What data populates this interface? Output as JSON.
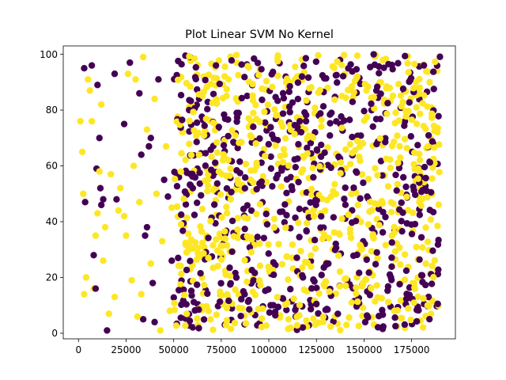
{
  "chart_data": {
    "type": "scatter",
    "title": "Plot Linear SVM No Kernel",
    "xlabel": "",
    "ylabel": "",
    "xlim": [
      -8000,
      198000
    ],
    "ylim": [
      -2,
      103
    ],
    "xticks": [
      0,
      25000,
      50000,
      75000,
      100000,
      125000,
      150000,
      175000
    ],
    "xtick_labels": [
      "0",
      "25000",
      "50000",
      "75000",
      "100000",
      "125000",
      "150000",
      "175000"
    ],
    "yticks": [
      0,
      20,
      40,
      60,
      80,
      100
    ],
    "ytick_labels": [
      "0",
      "20",
      "40",
      "60",
      "80",
      "100"
    ],
    "grid": false,
    "legend": "none",
    "point_count": 1400,
    "series": [
      {
        "class": 0,
        "color": "#440154",
        "points": [
          [
            3000,
            95
          ],
          [
            3500,
            47
          ],
          [
            7000,
            96
          ],
          [
            8000,
            28
          ],
          [
            9000,
            16
          ],
          [
            9500,
            59
          ],
          [
            10000,
            89
          ],
          [
            11000,
            70
          ],
          [
            11500,
            52
          ],
          [
            12000,
            46
          ],
          [
            13000,
            48
          ],
          [
            15000,
            1
          ],
          [
            19000,
            93
          ],
          [
            20000,
            48
          ],
          [
            24000,
            75
          ],
          [
            27000,
            97
          ],
          [
            32000,
            86
          ],
          [
            33000,
            64
          ],
          [
            34000,
            5
          ],
          [
            35000,
            35
          ],
          [
            36000,
            38
          ],
          [
            37000,
            67
          ],
          [
            38000,
            70
          ],
          [
            39000,
            18
          ],
          [
            40000,
            4
          ],
          [
            42000,
            91
          ],
          [
            45000,
            55
          ],
          [
            47000,
            49
          ],
          [
            49000,
            26
          ]
        ]
      },
      {
        "class": 1,
        "color": "#fde725",
        "points": [
          [
            1000,
            76
          ],
          [
            2000,
            65
          ],
          [
            2500,
            50
          ],
          [
            3000,
            14
          ],
          [
            4000,
            20
          ],
          [
            5000,
            91
          ],
          [
            6000,
            87
          ],
          [
            7000,
            76
          ],
          [
            8000,
            16
          ],
          [
            9000,
            35
          ],
          [
            10000,
            43
          ],
          [
            11000,
            58
          ],
          [
            12000,
            82
          ],
          [
            13000,
            26
          ],
          [
            14000,
            38
          ],
          [
            16000,
            7
          ],
          [
            17000,
            57
          ],
          [
            19000,
            13
          ],
          [
            21000,
            44
          ],
          [
            22000,
            52
          ],
          [
            24000,
            42
          ],
          [
            25000,
            35
          ],
          [
            26000,
            93
          ],
          [
            28000,
            19
          ],
          [
            29000,
            60
          ],
          [
            30000,
            91
          ],
          [
            31000,
            6
          ],
          [
            32000,
            47
          ],
          [
            33000,
            14
          ],
          [
            34000,
            99
          ],
          [
            36000,
            73
          ],
          [
            38000,
            25
          ],
          [
            40000,
            84
          ],
          [
            41000,
            50
          ],
          [
            43000,
            1
          ],
          [
            44000,
            33
          ],
          [
            46000,
            67
          ],
          [
            48000,
            8
          ],
          [
            49000,
            45
          ]
        ]
      }
    ],
    "generated_region": {
      "x_range": [
        50000,
        190000
      ],
      "y_range": [
        1,
        100
      ],
      "points_per_class": 666,
      "seed": 20240611
    }
  }
}
